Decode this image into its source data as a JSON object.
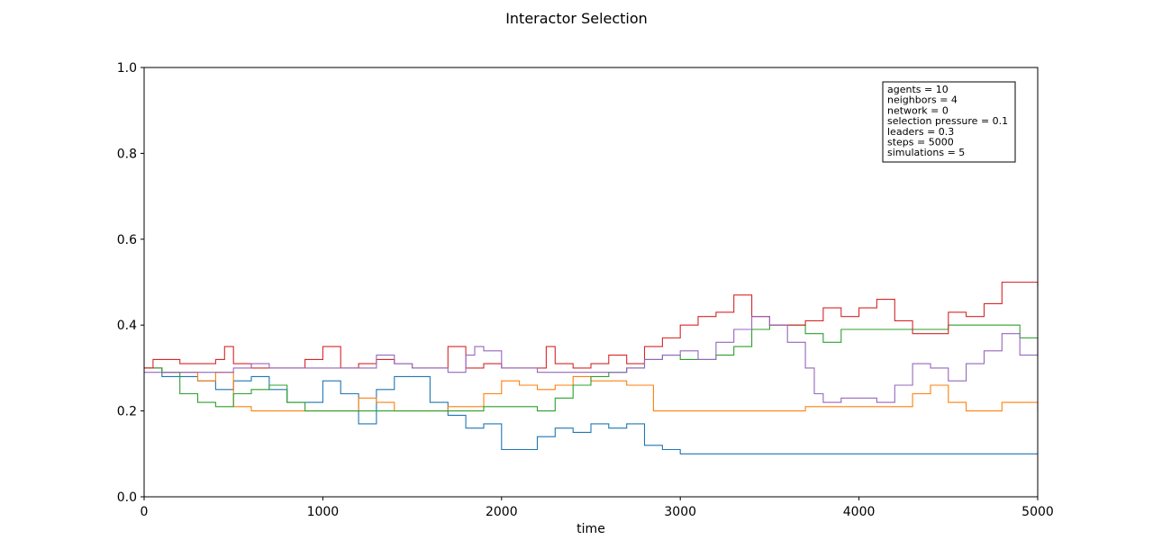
{
  "chart_data": {
    "type": "line",
    "title": "Interactor Selection",
    "xlabel": "time",
    "ylabel": "",
    "xlim": [
      0,
      5000
    ],
    "ylim": [
      0.0,
      1.0
    ],
    "grid": false,
    "x_ticks": [
      "0",
      "1000",
      "2000",
      "3000",
      "4000",
      "5000"
    ],
    "y_ticks": [
      "0.0",
      "0.2",
      "0.4",
      "0.6",
      "0.8",
      "1.0"
    ],
    "annotation_box": {
      "placement": "top-right",
      "lines": [
        "agents = 10",
        "neighbors = 4",
        "network = 0",
        "selection pressure = 0.1",
        "leaders = 0.3",
        "steps = 5000",
        "simulations = 5"
      ]
    },
    "series": [
      {
        "color": "#1f77b4",
        "x": [
          0,
          100,
          200,
          300,
          400,
          500,
          600,
          700,
          800,
          900,
          1000,
          1100,
          1200,
          1300,
          1400,
          1500,
          1600,
          1700,
          1800,
          1900,
          2000,
          2100,
          2200,
          2300,
          2400,
          2500,
          2600,
          2700,
          2800,
          2900,
          3000,
          3500,
          4000,
          4500,
          5000
        ],
        "y": [
          0.3,
          0.28,
          0.28,
          0.27,
          0.25,
          0.27,
          0.28,
          0.25,
          0.22,
          0.22,
          0.27,
          0.24,
          0.17,
          0.25,
          0.28,
          0.28,
          0.22,
          0.19,
          0.16,
          0.17,
          0.11,
          0.11,
          0.14,
          0.16,
          0.15,
          0.17,
          0.16,
          0.17,
          0.12,
          0.11,
          0.1,
          0.1,
          0.1,
          0.1,
          0.1
        ]
      },
      {
        "color": "#ff7f0e",
        "x": [
          0,
          100,
          200,
          300,
          400,
          500,
          600,
          700,
          800,
          900,
          1000,
          1100,
          1200,
          1300,
          1400,
          1500,
          1600,
          1700,
          1800,
          1900,
          2000,
          2100,
          2200,
          2300,
          2400,
          2500,
          2600,
          2700,
          2800,
          2850,
          3000,
          3500,
          3700,
          4000,
          4200,
          4300,
          4400,
          4500,
          4600,
          4800,
          5000
        ],
        "y": [
          0.3,
          0.29,
          0.29,
          0.27,
          0.29,
          0.21,
          0.2,
          0.2,
          0.2,
          0.2,
          0.2,
          0.2,
          0.23,
          0.22,
          0.2,
          0.2,
          0.2,
          0.21,
          0.21,
          0.24,
          0.27,
          0.26,
          0.25,
          0.26,
          0.28,
          0.27,
          0.27,
          0.26,
          0.26,
          0.2,
          0.2,
          0.2,
          0.21,
          0.21,
          0.21,
          0.24,
          0.26,
          0.22,
          0.2,
          0.22,
          0.2
        ]
      },
      {
        "color": "#2ca02c",
        "x": [
          0,
          100,
          200,
          300,
          400,
          500,
          600,
          700,
          800,
          900,
          1000,
          1100,
          1200,
          1300,
          1400,
          1500,
          1600,
          1700,
          1800,
          1900,
          2000,
          2100,
          2200,
          2300,
          2400,
          2500,
          2600,
          2700,
          2800,
          2900,
          3000,
          3200,
          3300,
          3400,
          3500,
          3600,
          3700,
          3800,
          3900,
          4000,
          4200,
          4500,
          4700,
          4800,
          4900,
          5000
        ],
        "y": [
          0.3,
          0.29,
          0.24,
          0.22,
          0.21,
          0.24,
          0.25,
          0.26,
          0.22,
          0.2,
          0.2,
          0.2,
          0.2,
          0.2,
          0.2,
          0.2,
          0.2,
          0.2,
          0.2,
          0.21,
          0.21,
          0.21,
          0.2,
          0.23,
          0.26,
          0.28,
          0.29,
          0.3,
          0.32,
          0.33,
          0.32,
          0.33,
          0.35,
          0.39,
          0.4,
          0.4,
          0.38,
          0.36,
          0.39,
          0.39,
          0.39,
          0.4,
          0.4,
          0.4,
          0.37,
          0.36
        ]
      },
      {
        "color": "#d62728",
        "x": [
          0,
          50,
          100,
          200,
          300,
          400,
          450,
          500,
          600,
          700,
          800,
          900,
          1000,
          1100,
          1200,
          1300,
          1400,
          1500,
          1600,
          1700,
          1800,
          1900,
          2000,
          2100,
          2200,
          2250,
          2300,
          2400,
          2500,
          2600,
          2700,
          2800,
          2900,
          3000,
          3100,
          3200,
          3300,
          3400,
          3500,
          3600,
          3700,
          3800,
          3900,
          4000,
          4100,
          4200,
          4300,
          4400,
          4500,
          4600,
          4700,
          4800,
          4900,
          5000
        ],
        "y": [
          0.3,
          0.32,
          0.32,
          0.31,
          0.31,
          0.32,
          0.35,
          0.31,
          0.3,
          0.3,
          0.3,
          0.32,
          0.35,
          0.3,
          0.31,
          0.32,
          0.31,
          0.3,
          0.3,
          0.35,
          0.3,
          0.31,
          0.3,
          0.3,
          0.3,
          0.35,
          0.31,
          0.3,
          0.31,
          0.33,
          0.31,
          0.35,
          0.37,
          0.4,
          0.42,
          0.43,
          0.47,
          0.42,
          0.4,
          0.4,
          0.41,
          0.44,
          0.42,
          0.44,
          0.46,
          0.41,
          0.38,
          0.38,
          0.43,
          0.42,
          0.45,
          0.5,
          0.5,
          0.49
        ]
      },
      {
        "color": "#9467bd",
        "x": [
          0,
          100,
          200,
          300,
          400,
          500,
          600,
          700,
          800,
          900,
          1000,
          1100,
          1200,
          1300,
          1400,
          1500,
          1600,
          1700,
          1800,
          1850,
          1900,
          2000,
          2100,
          2200,
          2300,
          2400,
          2500,
          2600,
          2700,
          2800,
          2900,
          3000,
          3100,
          3200,
          3300,
          3400,
          3500,
          3600,
          3700,
          3750,
          3800,
          3900,
          4000,
          4100,
          4200,
          4300,
          4400,
          4500,
          4600,
          4700,
          4800,
          4900,
          5000
        ],
        "y": [
          0.29,
          0.29,
          0.29,
          0.29,
          0.29,
          0.3,
          0.31,
          0.3,
          0.3,
          0.3,
          0.3,
          0.3,
          0.3,
          0.33,
          0.31,
          0.3,
          0.3,
          0.29,
          0.33,
          0.35,
          0.34,
          0.3,
          0.3,
          0.29,
          0.29,
          0.29,
          0.29,
          0.29,
          0.3,
          0.32,
          0.33,
          0.34,
          0.32,
          0.36,
          0.39,
          0.42,
          0.4,
          0.36,
          0.3,
          0.24,
          0.22,
          0.23,
          0.23,
          0.22,
          0.26,
          0.31,
          0.3,
          0.27,
          0.31,
          0.34,
          0.38,
          0.33,
          0.36
        ]
      }
    ]
  }
}
